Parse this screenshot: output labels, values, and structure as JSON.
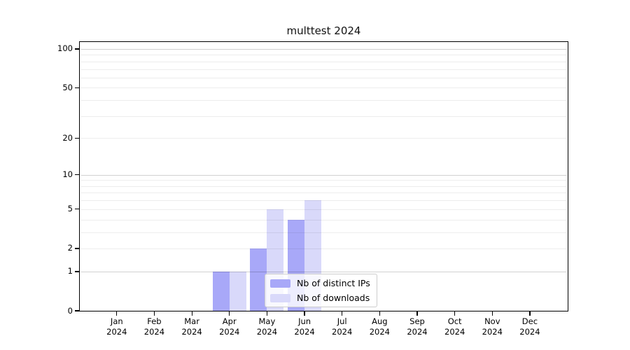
{
  "chart_data": {
    "type": "bar",
    "title": "multtest 2024",
    "year": "2024",
    "categories": [
      "Jan",
      "Feb",
      "Mar",
      "Apr",
      "May",
      "Jun",
      "Jul",
      "Aug",
      "Sep",
      "Oct",
      "Nov",
      "Dec"
    ],
    "series": [
      {
        "name": "Nb of distinct IPs",
        "color": "#a8a8f8",
        "values": [
          0,
          0,
          0,
          1,
          2,
          4,
          0,
          0,
          0,
          0,
          0,
          0
        ]
      },
      {
        "name": "Nb of downloads",
        "color": "#d9d9fa",
        "values": [
          0,
          0,
          0,
          1,
          5,
          6,
          0,
          0,
          0,
          0,
          0,
          0
        ]
      }
    ],
    "y_axis": {
      "scale": "log10(1+x)",
      "tick_labels": [
        "0",
        "1",
        "2",
        "5",
        "10",
        "20",
        "50",
        "100"
      ],
      "tick_values": [
        0,
        1,
        2,
        5,
        10,
        20,
        50,
        100
      ],
      "minor_gridlines": [
        2,
        3,
        4,
        5,
        6,
        7,
        8,
        9,
        20,
        30,
        40,
        50,
        60,
        70,
        80,
        90
      ],
      "major_gridlines": [
        1,
        10,
        100
      ],
      "ylim_top": 113
    },
    "x_axis": {
      "tick_label_line2": "2024"
    },
    "grid": true,
    "legend_position": "lower center",
    "colors": {
      "grid_minor": "rgba(0,0,0,0.07)",
      "grid_major": "rgba(0,0,0,0.18)",
      "axis": "#000000",
      "legend_border": "#cccccc",
      "legend_background": "rgba(255,255,255,0.8)"
    }
  }
}
